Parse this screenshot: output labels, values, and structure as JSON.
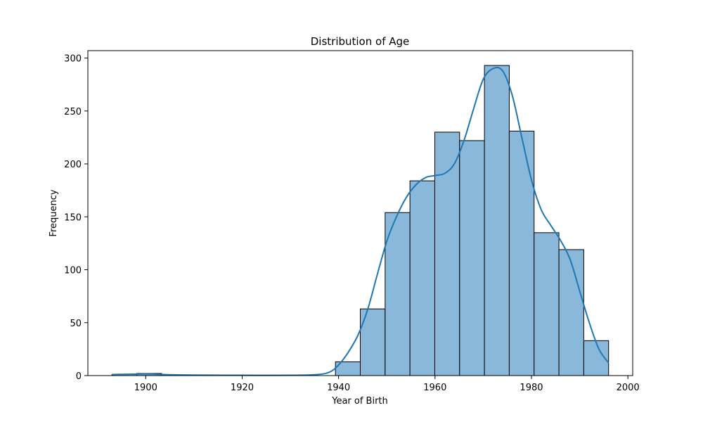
{
  "chart_data": {
    "type": "bar",
    "title": "Distribution of Age",
    "xlabel": "Year of Birth",
    "ylabel": "Frequency",
    "xlim": [
      1888,
      2001
    ],
    "ylim": [
      0,
      307
    ],
    "xticks": [
      1900,
      1920,
      1940,
      1960,
      1980,
      2000
    ],
    "yticks": [
      0,
      50,
      100,
      150,
      200,
      250,
      300
    ],
    "bins": [
      {
        "x0": 1893.0,
        "x1": 1898.15,
        "count": 1
      },
      {
        "x0": 1898.15,
        "x1": 1903.3,
        "count": 2
      },
      {
        "x0": 1903.3,
        "x1": 1908.45,
        "count": 0
      },
      {
        "x0": 1908.45,
        "x1": 1913.6,
        "count": 0
      },
      {
        "x0": 1913.6,
        "x1": 1918.75,
        "count": 0
      },
      {
        "x0": 1918.75,
        "x1": 1923.9,
        "count": 0
      },
      {
        "x0": 1923.9,
        "x1": 1929.05,
        "count": 0
      },
      {
        "x0": 1929.05,
        "x1": 1934.2,
        "count": 0
      },
      {
        "x0": 1934.2,
        "x1": 1939.35,
        "count": 0
      },
      {
        "x0": 1939.35,
        "x1": 1944.5,
        "count": 13
      },
      {
        "x0": 1944.5,
        "x1": 1949.65,
        "count": 63
      },
      {
        "x0": 1949.65,
        "x1": 1954.8,
        "count": 154
      },
      {
        "x0": 1954.8,
        "x1": 1959.95,
        "count": 184
      },
      {
        "x0": 1959.95,
        "x1": 1965.1,
        "count": 230
      },
      {
        "x0": 1965.1,
        "x1": 1970.25,
        "count": 222
      },
      {
        "x0": 1970.25,
        "x1": 1975.4,
        "count": 293
      },
      {
        "x0": 1975.4,
        "x1": 1980.55,
        "count": 231
      },
      {
        "x0": 1980.55,
        "x1": 1985.7,
        "count": 135
      },
      {
        "x0": 1985.7,
        "x1": 1990.85,
        "count": 119
      },
      {
        "x0": 1990.85,
        "x1": 1996.0,
        "count": 33
      }
    ],
    "kde": [
      [
        1893,
        1
      ],
      [
        1900,
        1.5
      ],
      [
        1905,
        0.8
      ],
      [
        1910,
        0.5
      ],
      [
        1920,
        0.3
      ],
      [
        1930,
        0.3
      ],
      [
        1935,
        0.8
      ],
      [
        1938,
        3
      ],
      [
        1940,
        10
      ],
      [
        1942,
        22
      ],
      [
        1944,
        38
      ],
      [
        1946,
        62
      ],
      [
        1948,
        95
      ],
      [
        1950,
        127
      ],
      [
        1952,
        150
      ],
      [
        1954,
        168
      ],
      [
        1956,
        180
      ],
      [
        1958,
        187
      ],
      [
        1960,
        189
      ],
      [
        1962,
        191
      ],
      [
        1964,
        200
      ],
      [
        1966,
        222
      ],
      [
        1968,
        252
      ],
      [
        1970,
        280
      ],
      [
        1972,
        290
      ],
      [
        1974,
        288
      ],
      [
        1976,
        265
      ],
      [
        1978,
        225
      ],
      [
        1980,
        185
      ],
      [
        1982,
        157
      ],
      [
        1984,
        142
      ],
      [
        1986,
        128
      ],
      [
        1988,
        110
      ],
      [
        1990,
        80
      ],
      [
        1992,
        50
      ],
      [
        1994,
        25
      ],
      [
        1996,
        12
      ]
    ],
    "colors": {
      "bar_fill": "#8ab8da",
      "bar_edge": "#000000",
      "kde_line": "#1f77b4"
    },
    "grid": false,
    "legend": "none"
  }
}
